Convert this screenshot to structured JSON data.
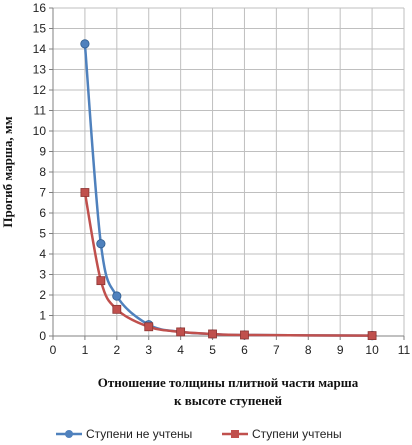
{
  "chart_data": {
    "type": "line",
    "xlabel_line1": "Отношение толщины плитной части марша",
    "xlabel_line2": "к высоте ступеней",
    "ylabel": "Прогиб марша, мм",
    "xlim": [
      0,
      11
    ],
    "ylim": [
      0,
      16
    ],
    "xticks": [
      0,
      1,
      2,
      3,
      4,
      5,
      6,
      7,
      8,
      9,
      10,
      11
    ],
    "yticks": [
      0,
      1,
      2,
      3,
      4,
      5,
      6,
      7,
      8,
      9,
      10,
      11,
      12,
      13,
      14,
      15,
      16
    ],
    "grid": true,
    "legend_position": "bottom",
    "series": [
      {
        "name": "Ступени не учтены",
        "color": "#4f81bd",
        "marker": "circle",
        "x": [
          1,
          1.5,
          2,
          3,
          4,
          5,
          6,
          10
        ],
        "y": [
          14.25,
          4.5,
          1.95,
          0.55,
          0.2,
          0.1,
          0.05,
          0.02
        ]
      },
      {
        "name": "Ступени учтены",
        "color": "#c0504d",
        "marker": "square",
        "x": [
          1,
          1.5,
          2,
          3,
          4,
          5,
          6,
          10
        ],
        "y": [
          7.0,
          2.7,
          1.3,
          0.45,
          0.2,
          0.1,
          0.05,
          0.02
        ]
      }
    ]
  }
}
